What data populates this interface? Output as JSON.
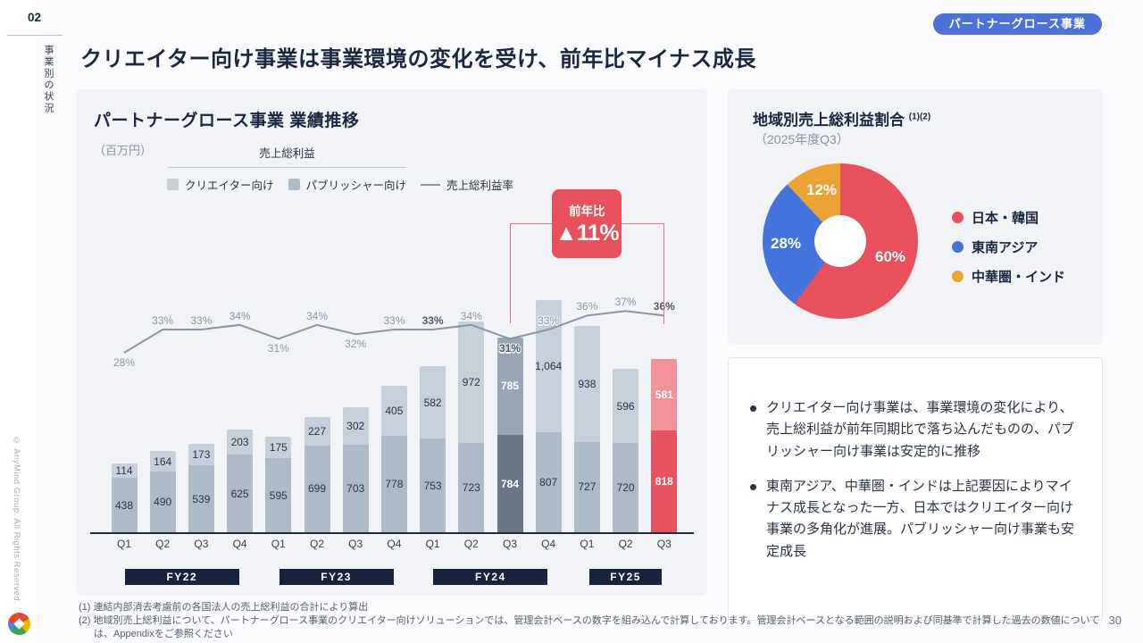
{
  "slide": {
    "section_number": "02",
    "section_label": "事業別の状況",
    "badge": "パートナーグロース事業",
    "title": "クリエイター向け事業は事業環境の変化を受け、前年比マイナス成長",
    "copyright": "© AnyMind Group. All Rights Reserved.",
    "page_number": "30"
  },
  "chart_data": [
    {
      "type": "bar",
      "title": "パートナーグロース事業 業績推移",
      "unit_label": "（百万円）",
      "group_label": "売上総利益",
      "categories": [
        "Q1",
        "Q2",
        "Q3",
        "Q4",
        "Q1",
        "Q2",
        "Q3",
        "Q4",
        "Q1",
        "Q2",
        "Q3",
        "Q4",
        "Q1",
        "Q2",
        "Q3"
      ],
      "fiscal_year_groups": [
        {
          "label": "FY22",
          "quarters": 4
        },
        {
          "label": "FY23",
          "quarters": 4
        },
        {
          "label": "FY24",
          "quarters": 4
        },
        {
          "label": "FY25",
          "quarters": 3
        }
      ],
      "series": [
        {
          "name": "クリエイター向け",
          "values": [
            114,
            164,
            173,
            203,
            175,
            227,
            302,
            405,
            582,
            972,
            785,
            1064,
            938,
            596,
            581
          ]
        },
        {
          "name": "パブリッシャー向け",
          "values": [
            438,
            490,
            539,
            625,
            595,
            699,
            703,
            778,
            753,
            723,
            784,
            807,
            727,
            720,
            818
          ]
        },
        {
          "name": "売上総利益率",
          "unit": "%",
          "values": [
            28,
            33,
            33,
            34,
            31,
            34,
            32,
            33,
            33,
            34,
            31,
            33,
            36,
            37,
            36
          ]
        }
      ],
      "rate_labels_below": [
        0,
        4,
        6,
        10
      ],
      "rate_labels_bold": [
        8,
        10,
        14
      ],
      "highlight": {
        "gray_index": 10,
        "red_index": 14
      },
      "callout": {
        "label": "前年比",
        "value": "▲11%",
        "from_index": 10,
        "to_index": 14
      },
      "colors": {
        "creator": "#C7CFDB",
        "publisher": "#AFBAC9",
        "creator_highlight": "#9AA6B6",
        "publisher_highlight": "#6A7585",
        "creator_negative": "#F4929B",
        "publisher_negative": "#E85360",
        "rate_line": "#8B95A3",
        "callout": "#E8515C",
        "fiscal_band": "#17233F"
      }
    },
    {
      "type": "pie",
      "title": "地域別売上総利益割合",
      "title_superscript": "(1)(2)",
      "subtitle": "（2025年度Q3）",
      "slices": [
        {
          "label": "日本・韓国",
          "value": 60,
          "color": "#E8505B"
        },
        {
          "label": "東南アジア",
          "value": 28,
          "color": "#4374DC"
        },
        {
          "label": "中華圏・インド",
          "value": 12,
          "color": "#ECA235"
        }
      ],
      "legend_position": "right"
    }
  ],
  "insights": {
    "items": [
      "クリエイター向け事業は、事業環境の変化により、売上総利益が前年同期比で落ち込んだものの、パブリッシャー向け事業は安定的に推移",
      "東南アジア、中華圏・インドは上記要因によりマイナス成長となった一方、日本ではクリエイター向け事業の多角化が進展。パブリッシャー向け事業も安定成長"
    ]
  },
  "footnotes": [
    "(1) 連結内部消去考慮前の各国法人の売上総利益の合計により算出",
    "(2) 地域別売上総利益について、パートナーグロース事業のクリエイター向けソリューションでは、管理会計ベースの数字を組み込んで計算しております。管理会計ベースとなる範囲の説明および同基準で計算した過去の数値については、Appendixをご参照ください"
  ]
}
